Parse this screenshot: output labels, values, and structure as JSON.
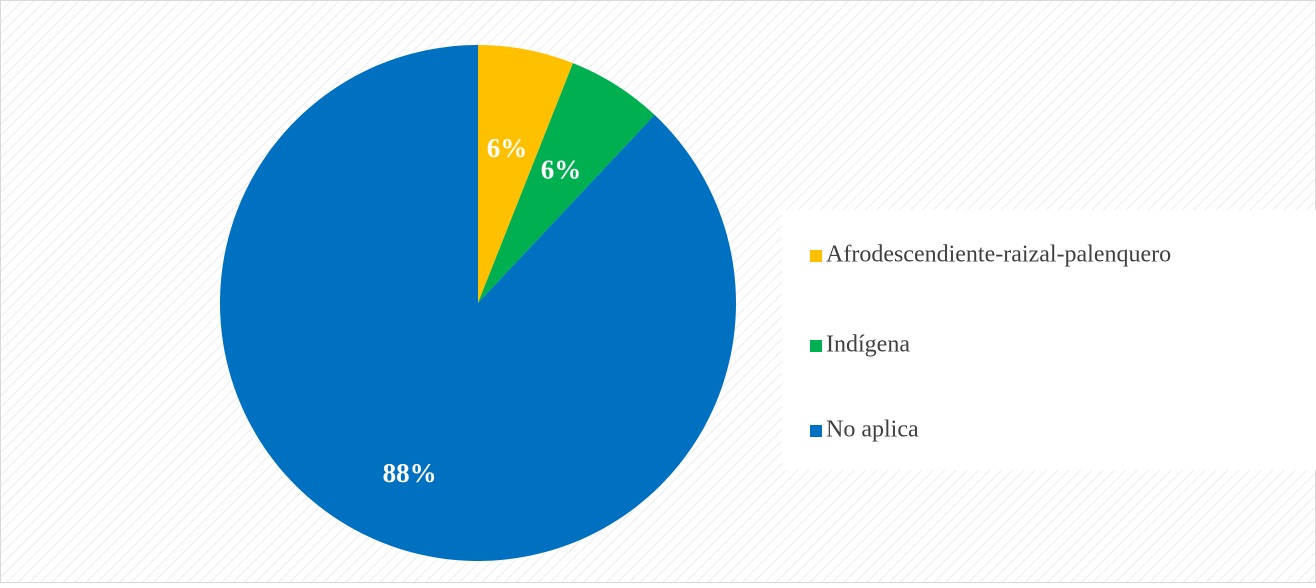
{
  "chart_data": {
    "type": "pie",
    "categories": [
      "Afrodescendiente-raizal-palenquero",
      "Indígena",
      "No aplica"
    ],
    "values": [
      6,
      6,
      88
    ],
    "value_labels": [
      "6%",
      "6%",
      "88%"
    ],
    "colors": [
      "#FFC000",
      "#00B050",
      "#0070C0"
    ],
    "legend": "right"
  }
}
